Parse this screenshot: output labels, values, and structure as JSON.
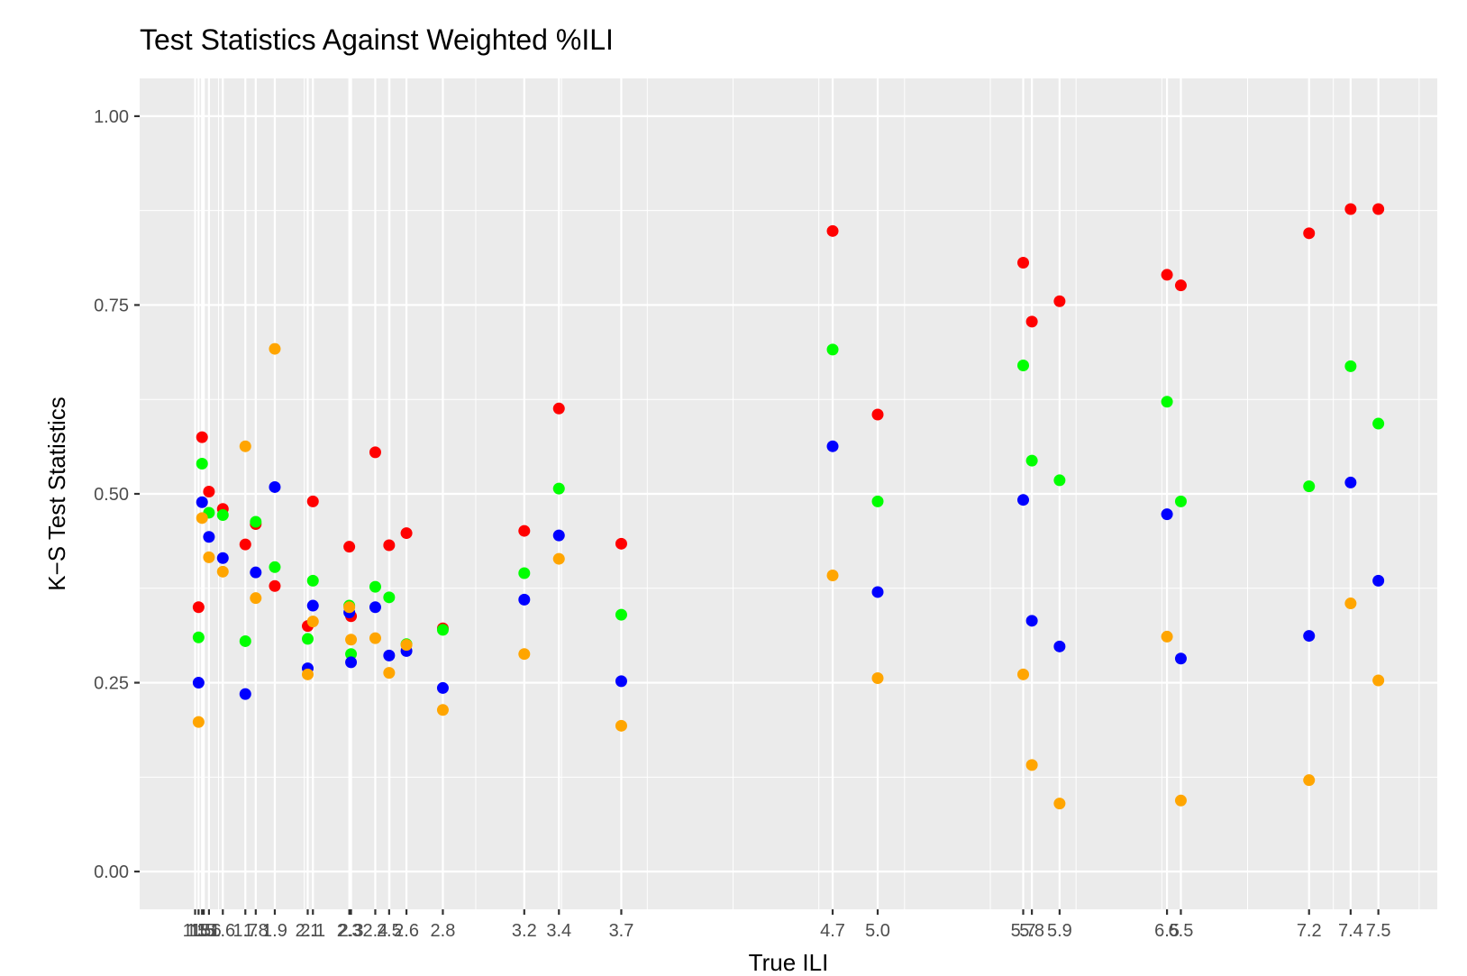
{
  "chart_data": {
    "type": "scatter",
    "title": "Test Statistics Against Weighted %ILI",
    "xlabel": "True ILI",
    "ylabel": "K−S Test Statistics",
    "ylim": [
      -0.05,
      1.05
    ],
    "xlim": [
      0.43,
      7.92
    ],
    "y_ticks": [
      {
        "value": 0.0,
        "label": "0.00"
      },
      {
        "value": 0.25,
        "label": "0.25"
      },
      {
        "value": 0.5,
        "label": "0.50"
      },
      {
        "value": 0.75,
        "label": "0.75"
      },
      {
        "value": 1.0,
        "label": "1.00"
      }
    ],
    "x_ticks": [
      {
        "value": 0.75,
        "label": "1.5"
      },
      {
        "value": 0.77,
        "label": "1.5"
      },
      {
        "value": 0.79,
        "label": "1.5"
      },
      {
        "value": 0.8,
        "label": "1.5"
      },
      {
        "value": 0.83,
        "label": "1.6"
      },
      {
        "value": 0.91,
        "label": "1.6"
      },
      {
        "value": 1.04,
        "label": "1.7"
      },
      {
        "value": 1.1,
        "label": "1.8"
      },
      {
        "value": 1.21,
        "label": "1.9"
      },
      {
        "value": 1.4,
        "label": "2.1"
      },
      {
        "value": 1.43,
        "label": "2.1"
      },
      {
        "value": 1.64,
        "label": "2.3"
      },
      {
        "value": 1.65,
        "label": "2.3"
      },
      {
        "value": 1.79,
        "label": "2.4"
      },
      {
        "value": 1.87,
        "label": "2.5"
      },
      {
        "value": 1.97,
        "label": "2.6"
      },
      {
        "value": 2.18,
        "label": "2.8"
      },
      {
        "value": 2.65,
        "label": "3.2"
      },
      {
        "value": 2.85,
        "label": "3.4"
      },
      {
        "value": 3.21,
        "label": "3.7"
      },
      {
        "value": 4.43,
        "label": "4.7"
      },
      {
        "value": 4.69,
        "label": "5.0"
      },
      {
        "value": 5.53,
        "label": "5.7"
      },
      {
        "value": 5.58,
        "label": "5.8"
      },
      {
        "value": 5.74,
        "label": "5.9"
      },
      {
        "value": 6.36,
        "label": "6.5"
      },
      {
        "value": 6.44,
        "label": "6.5"
      },
      {
        "value": 7.18,
        "label": "7.2"
      },
      {
        "value": 7.42,
        "label": "7.4"
      },
      {
        "value": 7.58,
        "label": "7.5"
      }
    ],
    "x_minor_grid": [
      0.885,
      1.38,
      1.875,
      2.37,
      2.865,
      3.36,
      3.855,
      4.35,
      4.845,
      5.34,
      5.835,
      6.33,
      6.825,
      7.32,
      7.815
    ],
    "grid": true,
    "legend": "none",
    "colors": {
      "red": "#ff0000",
      "green": "#00ff00",
      "blue": "#0000ff",
      "orange": "#ffa500",
      "panel": "#ebebeb",
      "grid": "#ffffff"
    },
    "series": [
      {
        "color": "#ff0000",
        "points": [
          [
            0.77,
            0.35
          ],
          [
            0.79,
            0.575
          ],
          [
            0.83,
            0.503
          ],
          [
            0.91,
            0.48
          ],
          [
            1.04,
            0.433
          ],
          [
            1.1,
            0.46
          ],
          [
            1.21,
            0.378
          ],
          [
            1.4,
            0.325
          ],
          [
            1.43,
            0.49
          ],
          [
            1.64,
            0.43
          ],
          [
            1.65,
            0.338
          ],
          [
            1.79,
            0.555
          ],
          [
            1.87,
            0.432
          ],
          [
            1.97,
            0.448
          ],
          [
            2.18,
            0.322
          ],
          [
            2.65,
            0.451
          ],
          [
            2.85,
            0.613
          ],
          [
            3.21,
            0.434
          ],
          [
            4.43,
            0.848
          ],
          [
            4.69,
            0.605
          ],
          [
            5.53,
            0.806
          ],
          [
            5.58,
            0.728
          ],
          [
            5.74,
            0.755
          ],
          [
            6.36,
            0.79
          ],
          [
            6.44,
            0.776
          ],
          [
            7.18,
            0.845
          ],
          [
            7.42,
            0.877
          ],
          [
            7.58,
            0.877
          ]
        ]
      },
      {
        "color": "#00ff00",
        "points": [
          [
            0.77,
            0.31
          ],
          [
            0.79,
            0.54
          ],
          [
            0.83,
            0.475
          ],
          [
            0.91,
            0.472
          ],
          [
            1.04,
            0.305
          ],
          [
            1.1,
            0.463
          ],
          [
            1.21,
            0.403
          ],
          [
            1.4,
            0.308
          ],
          [
            1.43,
            0.385
          ],
          [
            1.64,
            0.352
          ],
          [
            1.65,
            0.288
          ],
          [
            1.79,
            0.377
          ],
          [
            1.87,
            0.363
          ],
          [
            1.97,
            0.301
          ],
          [
            2.18,
            0.32
          ],
          [
            2.65,
            0.395
          ],
          [
            2.85,
            0.507
          ],
          [
            3.21,
            0.34
          ],
          [
            4.43,
            0.691
          ],
          [
            4.69,
            0.49
          ],
          [
            5.53,
            0.67
          ],
          [
            5.58,
            0.544
          ],
          [
            5.74,
            0.518
          ],
          [
            6.36,
            0.622
          ],
          [
            6.44,
            0.49
          ],
          [
            7.18,
            0.51
          ],
          [
            7.42,
            0.669
          ],
          [
            7.58,
            0.593
          ]
        ]
      },
      {
        "color": "#0000ff",
        "points": [
          [
            0.77,
            0.25
          ],
          [
            0.79,
            0.489
          ],
          [
            0.83,
            0.443
          ],
          [
            0.91,
            0.415
          ],
          [
            1.04,
            0.235
          ],
          [
            1.1,
            0.396
          ],
          [
            1.21,
            0.509
          ],
          [
            1.4,
            0.269
          ],
          [
            1.43,
            0.352
          ],
          [
            1.64,
            0.343
          ],
          [
            1.65,
            0.277
          ],
          [
            1.79,
            0.35
          ],
          [
            1.87,
            0.286
          ],
          [
            1.97,
            0.292
          ],
          [
            2.18,
            0.243
          ],
          [
            2.65,
            0.36
          ],
          [
            2.85,
            0.445
          ],
          [
            3.21,
            0.252
          ],
          [
            4.43,
            0.563
          ],
          [
            4.69,
            0.37
          ],
          [
            5.53,
            0.492
          ],
          [
            5.58,
            0.332
          ],
          [
            5.74,
            0.298
          ],
          [
            6.36,
            0.473
          ],
          [
            6.44,
            0.282
          ],
          [
            7.18,
            0.312
          ],
          [
            7.42,
            0.515
          ],
          [
            7.58,
            0.385
          ]
        ]
      },
      {
        "color": "#ffa500",
        "points": [
          [
            0.77,
            0.198
          ],
          [
            0.79,
            0.468
          ],
          [
            0.83,
            0.416
          ],
          [
            0.91,
            0.397
          ],
          [
            1.04,
            0.563
          ],
          [
            1.1,
            0.362
          ],
          [
            1.21,
            0.692
          ],
          [
            1.4,
            0.261
          ],
          [
            1.43,
            0.331
          ],
          [
            1.64,
            0.35
          ],
          [
            1.65,
            0.307
          ],
          [
            1.79,
            0.309
          ],
          [
            1.87,
            0.263
          ],
          [
            1.97,
            0.3
          ],
          [
            2.18,
            0.214
          ],
          [
            2.65,
            0.288
          ],
          [
            2.85,
            0.414
          ],
          [
            3.21,
            0.193
          ],
          [
            4.43,
            0.392
          ],
          [
            4.69,
            0.256
          ],
          [
            5.53,
            0.261
          ],
          [
            5.58,
            0.141
          ],
          [
            5.74,
            0.09
          ],
          [
            6.36,
            0.311
          ],
          [
            6.44,
            0.094
          ],
          [
            7.18,
            0.121
          ],
          [
            7.42,
            0.355
          ],
          [
            7.58,
            0.253
          ]
        ]
      }
    ]
  }
}
